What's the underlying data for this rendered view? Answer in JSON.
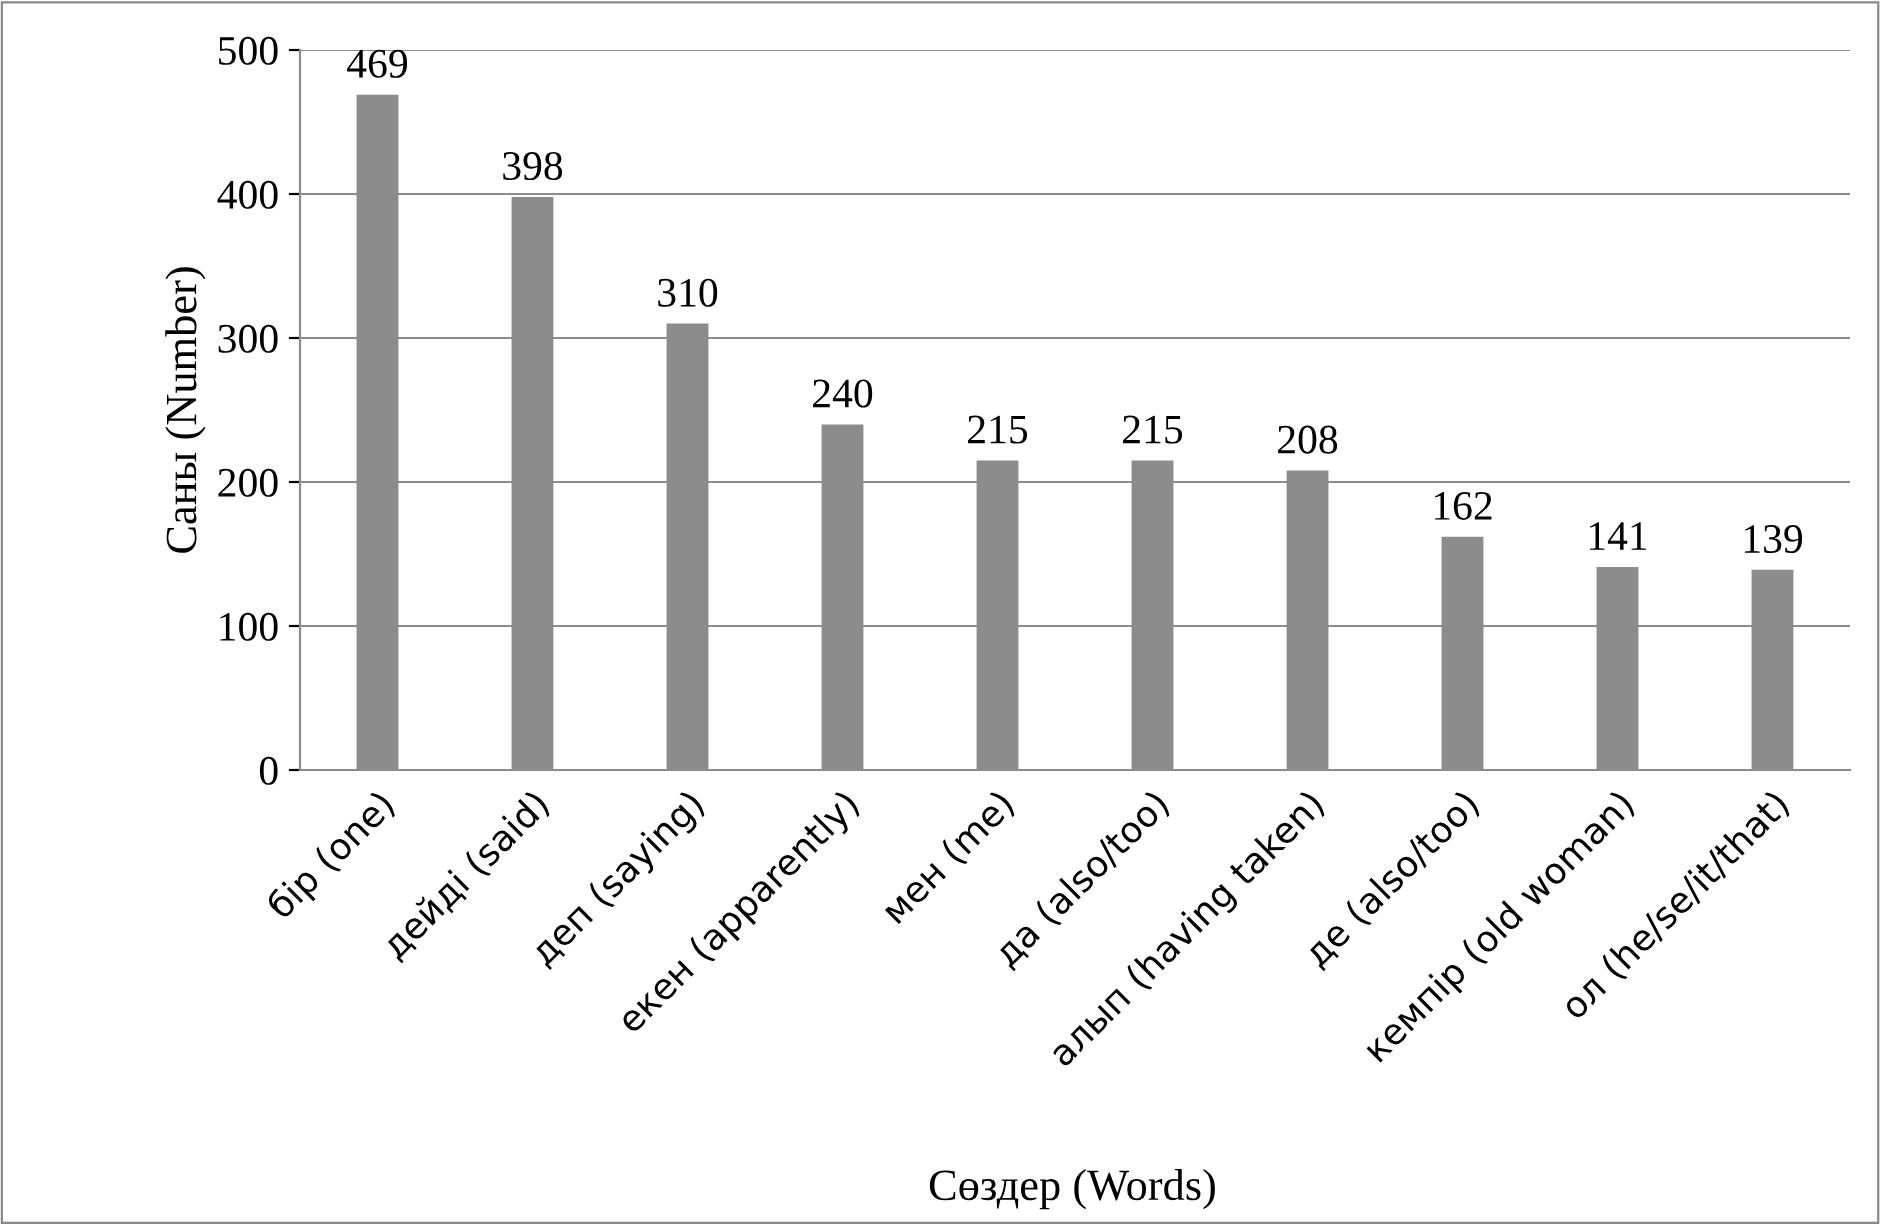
{
  "chart_data": {
    "type": "bar",
    "xlabel": "Сөздер (Words)",
    "ylabel": "Саны (Number)",
    "categories": [
      "бір (one)",
      "дейді (said)",
      "деп (saying)",
      "екен (apparently)",
      "мен (me)",
      "да (also/too)",
      "алып (having taken)",
      "де (also/too)",
      "кемпір (old woman)",
      "ол (he/se/it/that)"
    ],
    "values": [
      469,
      398,
      310,
      240,
      215,
      215,
      208,
      162,
      141,
      139
    ],
    "color": "#8c8c8c",
    "ylim": [
      0,
      500
    ],
    "yticks": [
      0,
      100,
      200,
      300,
      400,
      500
    ],
    "grid": "y",
    "data_labels": true,
    "legend": false
  }
}
